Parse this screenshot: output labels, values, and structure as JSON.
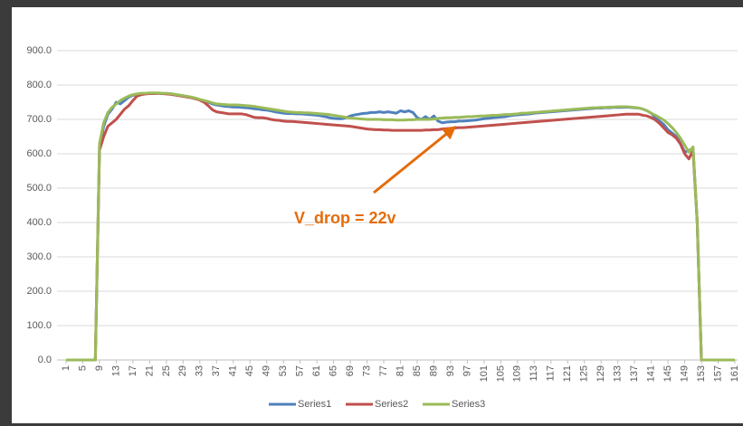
{
  "chart_data": {
    "type": "line",
    "annotation": "V_drop = 22v",
    "x": [
      1,
      2,
      3,
      4,
      5,
      6,
      7,
      8,
      9,
      10,
      11,
      12,
      13,
      14,
      15,
      16,
      17,
      18,
      19,
      20,
      21,
      22,
      23,
      24,
      25,
      26,
      27,
      28,
      29,
      30,
      31,
      32,
      33,
      34,
      35,
      36,
      37,
      38,
      39,
      40,
      41,
      42,
      43,
      44,
      45,
      46,
      47,
      48,
      49,
      50,
      51,
      52,
      53,
      54,
      55,
      56,
      57,
      58,
      59,
      60,
      61,
      62,
      63,
      64,
      65,
      66,
      67,
      68,
      69,
      70,
      71,
      72,
      73,
      74,
      75,
      76,
      77,
      78,
      79,
      80,
      81,
      82,
      83,
      84,
      85,
      86,
      87,
      88,
      89,
      90,
      91,
      92,
      93,
      94,
      95,
      96,
      97,
      98,
      99,
      100,
      101,
      102,
      103,
      104,
      105,
      106,
      107,
      108,
      109,
      110,
      111,
      112,
      113,
      114,
      115,
      116,
      117,
      118,
      119,
      120,
      121,
      122,
      123,
      124,
      125,
      126,
      127,
      128,
      129,
      130,
      131,
      132,
      133,
      134,
      135,
      136,
      137,
      138,
      139,
      140,
      141,
      142,
      143,
      144,
      145,
      146,
      147,
      148,
      149,
      150,
      151,
      152,
      153,
      154,
      155,
      156,
      157,
      158,
      159,
      160,
      161
    ],
    "xlim": [
      1,
      161
    ],
    "xticks": [
      1,
      5,
      9,
      13,
      17,
      21,
      25,
      29,
      33,
      37,
      41,
      45,
      49,
      53,
      57,
      61,
      65,
      69,
      73,
      77,
      81,
      85,
      89,
      93,
      97,
      101,
      105,
      109,
      113,
      117,
      121,
      125,
      129,
      133,
      137,
      141,
      145,
      149,
      153,
      157,
      161
    ],
    "ylim": [
      0,
      900
    ],
    "yticks": [
      {
        "value": 0,
        "label": "0.0"
      },
      {
        "value": 100,
        "label": "100.0"
      },
      {
        "value": 200,
        "label": "200.0"
      },
      {
        "value": 300,
        "label": "300.0"
      },
      {
        "value": 400,
        "label": "400.0"
      },
      {
        "value": 500,
        "label": "500.0"
      },
      {
        "value": 600,
        "label": "600.0"
      },
      {
        "value": 700,
        "label": "700.0"
      },
      {
        "value": 800,
        "label": "800.0"
      },
      {
        "value": 900,
        "label": "900.0"
      }
    ],
    "grid": true,
    "legend": "bottom",
    "series": [
      {
        "name": "Series1",
        "color": "#4f81bd",
        "values": [
          0,
          0,
          0,
          0,
          0,
          0,
          0,
          0,
          620,
          680,
          715,
          730,
          750,
          745,
          755,
          765,
          770,
          772,
          774,
          775,
          775,
          776,
          776,
          775,
          775,
          774,
          772,
          770,
          768,
          766,
          764,
          760,
          757,
          754,
          750,
          745,
          742,
          740,
          738,
          737,
          736,
          736,
          735,
          734,
          733,
          731,
          730,
          728,
          727,
          725,
          722,
          720,
          718,
          717,
          717,
          716,
          716,
          715,
          714,
          713,
          712,
          710,
          708,
          705,
          703,
          702,
          702,
          705,
          710,
          713,
          715,
          717,
          718,
          720,
          720,
          722,
          720,
          722,
          720,
          718,
          725,
          722,
          725,
          720,
          705,
          700,
          708,
          700,
          710,
          695,
          690,
          692,
          693,
          693,
          695,
          695,
          696,
          697,
          698,
          700,
          702,
          703,
          705,
          706,
          707,
          708,
          710,
          712,
          713,
          714,
          715,
          716,
          718,
          719,
          720,
          721,
          722,
          723,
          724,
          725,
          726,
          727,
          728,
          729,
          730,
          731,
          732,
          733,
          733,
          734,
          734,
          735,
          735,
          735,
          736,
          735,
          734,
          733,
          730,
          725,
          718,
          705,
          695,
          685,
          670,
          660,
          650,
          630,
          605,
          610,
          615,
          400,
          0,
          0,
          0,
          0,
          0,
          0,
          0,
          0,
          0
        ]
      },
      {
        "name": "Series2",
        "color": "#c0504d",
        "values": [
          0,
          0,
          0,
          0,
          0,
          0,
          0,
          0,
          610,
          650,
          680,
          690,
          700,
          715,
          730,
          740,
          755,
          768,
          772,
          774,
          775,
          775,
          776,
          775,
          774,
          773,
          771,
          769,
          767,
          765,
          763,
          760,
          756,
          750,
          740,
          728,
          722,
          720,
          718,
          716,
          716,
          716,
          716,
          714,
          710,
          706,
          705,
          705,
          703,
          700,
          698,
          697,
          695,
          694,
          694,
          693,
          692,
          691,
          690,
          689,
          688,
          687,
          686,
          685,
          684,
          683,
          682,
          681,
          680,
          678,
          676,
          674,
          672,
          671,
          670,
          670,
          669,
          669,
          668,
          668,
          668,
          668,
          668,
          668,
          668,
          668,
          669,
          669,
          670,
          670,
          672,
          673,
          674,
          675,
          676,
          676,
          677,
          678,
          679,
          680,
          681,
          682,
          683,
          684,
          685,
          686,
          687,
          688,
          689,
          690,
          691,
          692,
          693,
          694,
          695,
          696,
          697,
          698,
          699,
          700,
          701,
          702,
          703,
          704,
          705,
          706,
          707,
          708,
          709,
          710,
          711,
          712,
          713,
          714,
          715,
          715,
          715,
          715,
          712,
          710,
          705,
          698,
          688,
          675,
          662,
          655,
          645,
          628,
          600,
          585,
          610,
          400,
          0,
          0,
          0,
          0,
          0,
          0,
          0,
          0,
          0
        ]
      },
      {
        "name": "Series3",
        "color": "#9bbb59",
        "values": [
          0,
          0,
          0,
          0,
          0,
          0,
          0,
          0,
          630,
          690,
          720,
          735,
          745,
          755,
          762,
          768,
          772,
          774,
          776,
          776,
          777,
          777,
          777,
          776,
          776,
          775,
          773,
          771,
          769,
          767,
          765,
          762,
          758,
          755,
          752,
          748,
          745,
          744,
          743,
          742,
          742,
          742,
          741,
          740,
          739,
          738,
          736,
          734,
          732,
          730,
          728,
          726,
          724,
          722,
          721,
          720,
          720,
          719,
          719,
          718,
          717,
          716,
          715,
          714,
          712,
          710,
          708,
          706,
          704,
          703,
          702,
          701,
          700,
          700,
          700,
          700,
          699,
          699,
          699,
          698,
          698,
          698,
          699,
          699,
          700,
          700,
          700,
          700,
          701,
          703,
          704,
          705,
          705,
          706,
          706,
          707,
          708,
          708,
          709,
          710,
          710,
          711,
          712,
          712,
          713,
          714,
          714,
          715,
          716,
          718,
          718,
          719,
          720,
          721,
          722,
          723,
          724,
          725,
          726,
          727,
          728,
          729,
          730,
          731,
          732,
          733,
          734,
          734,
          735,
          735,
          736,
          736,
          737,
          737,
          737,
          736,
          735,
          733,
          730,
          725,
          718,
          712,
          705,
          698,
          688,
          676,
          662,
          645,
          625,
          605,
          620,
          400,
          0,
          0,
          0,
          0,
          0,
          0,
          0,
          0,
          0
        ]
      }
    ]
  }
}
